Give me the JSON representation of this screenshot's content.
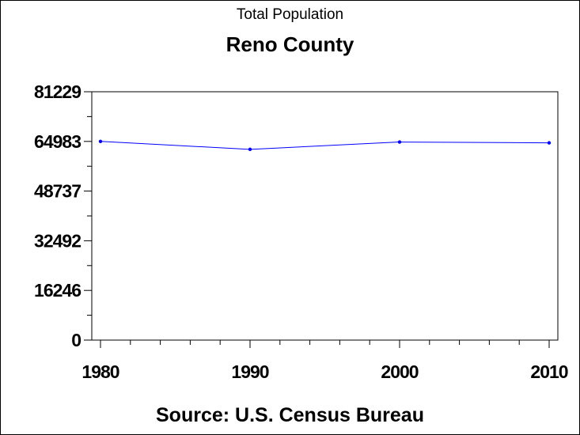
{
  "chart_data": {
    "type": "line",
    "subtitle": "Total Population",
    "title": "Reno County",
    "footnote": "Source: U.S. Census Bureau",
    "x": [
      1980,
      1990,
      2000,
      2010
    ],
    "x_tick_labels": [
      "1980",
      "1990",
      "2000",
      "2010"
    ],
    "xlim": [
      1980,
      2010
    ],
    "y_ticks": [
      0,
      16246,
      32492,
      48737,
      64983,
      81229
    ],
    "y_tick_labels": [
      "0",
      "16246",
      "32492",
      "48737",
      "64983",
      "81229"
    ],
    "ylim": [
      0,
      81229
    ],
    "series": [
      {
        "values": [
          64983,
          62389,
          64790,
          64511
        ]
      }
    ],
    "line_color": "#0000ff",
    "axis_color": "#000000",
    "grid": false
  }
}
